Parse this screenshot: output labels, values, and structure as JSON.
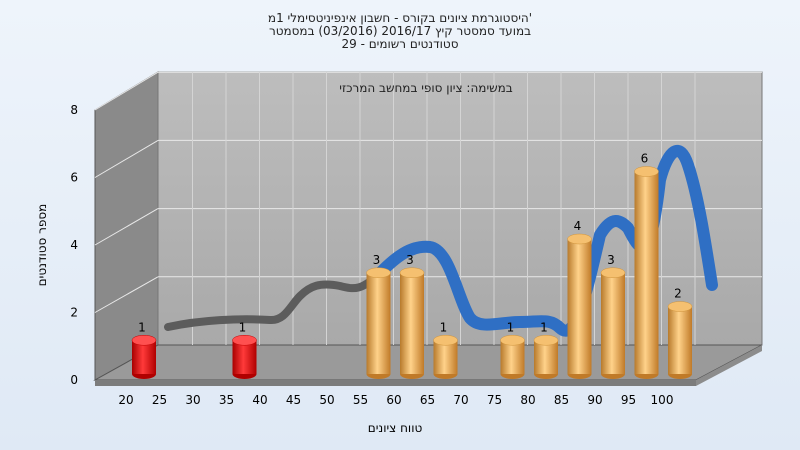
{
  "chart_data": {
    "type": "bar",
    "title": [
      "היסטוגרמת ציונים בקורס - חשבון אינפיניטסימלי 1מ'",
      "במועד סמסטר קיץ 2016/17  (03/2016) במסמטר",
      "29 - סטודנטים רשומים"
    ],
    "annotation": "במשימה: ציון סופי במחשב המרכזי",
    "xlabel": "טווח ציונים",
    "ylabel": "מספר סטודנטים",
    "ylim": [
      0,
      8
    ],
    "yticks": [
      "0",
      "2",
      "4",
      "6",
      "8"
    ],
    "xticks": [
      "20",
      "25",
      "30",
      "35",
      "40",
      "45",
      "50",
      "55",
      "60",
      "65",
      "70",
      "75",
      "80",
      "85",
      "90",
      "95",
      "100"
    ],
    "categories": [
      "20",
      "25",
      "30",
      "35",
      "40",
      "45",
      "50",
      "55",
      "60",
      "65",
      "70",
      "75",
      "80",
      "85",
      "90",
      "95",
      "100"
    ],
    "values": [
      1,
      0,
      0,
      1,
      0,
      0,
      0,
      3,
      3,
      1,
      0,
      1,
      1,
      4,
      3,
      6,
      2
    ],
    "colors": {
      "fail": "#e02020",
      "pass": "#e8a848",
      "curve_dark": "#5c5c5c",
      "curve_blue": "#2f6fc4"
    },
    "fail_threshold": 55
  }
}
